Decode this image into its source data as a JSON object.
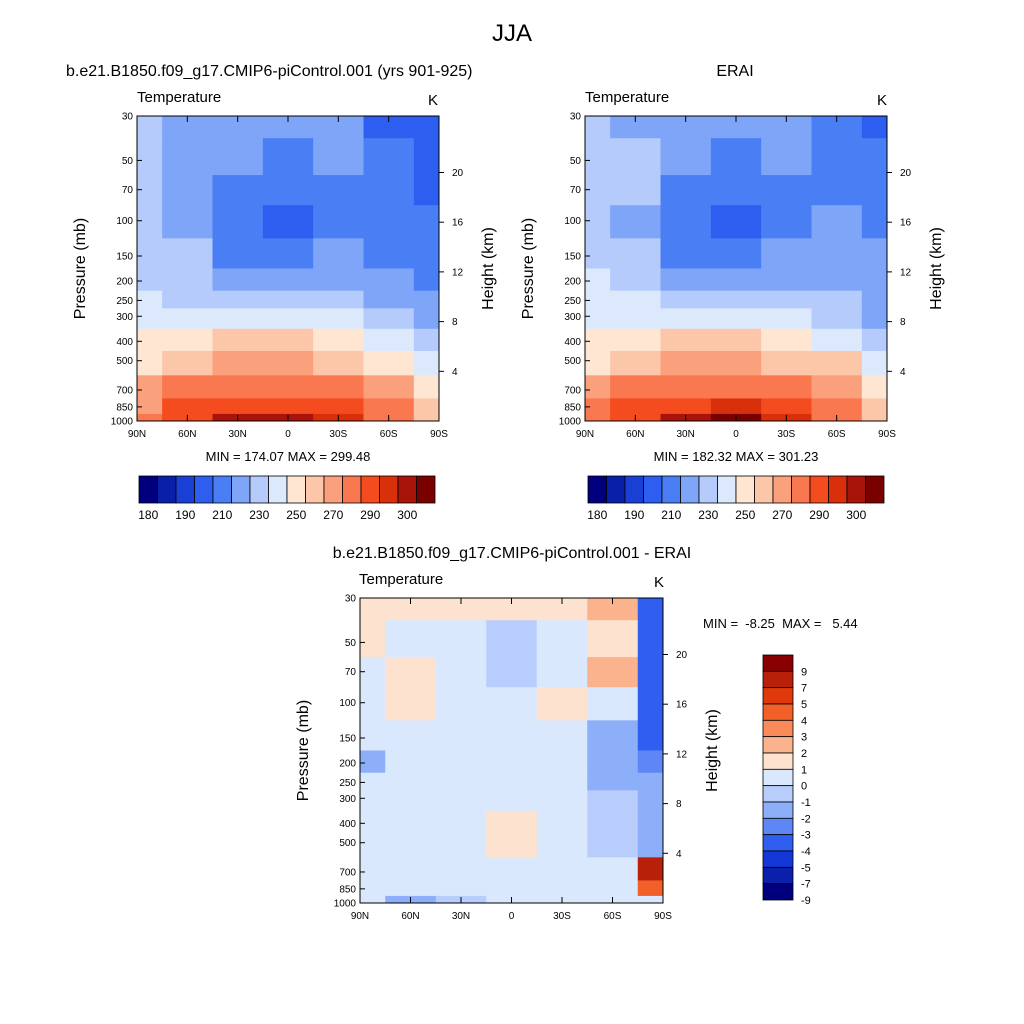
{
  "page_title": "JJA",
  "panels": [
    {
      "title": "b.e21.B1850.f09_g17.CMIP6-piControl.001 (yrs 901-925)",
      "variable": "Temperature",
      "units": "K",
      "ylabel": "Pressure (mb)",
      "ylabel_right": "Height (km)",
      "x_ticks": [
        "90N",
        "60N",
        "30N",
        "0",
        "30S",
        "60S",
        "90S"
      ],
      "y_ticks": [
        "30",
        "50",
        "70",
        "100",
        "150",
        "200",
        "250",
        "300",
        "400",
        "500",
        "700",
        "850",
        "1000"
      ],
      "height_ticks": [
        "20",
        "16",
        "12",
        "8",
        "4"
      ],
      "minmax": "MIN = 174.07  MAX = 299.48",
      "colorbar_labels": [
        "180",
        "190",
        "210",
        "230",
        "250",
        "270",
        "290",
        "300"
      ]
    },
    {
      "title": "ERAI",
      "variable": "Temperature",
      "units": "K",
      "ylabel": "Pressure (mb)",
      "ylabel_right": "Height (km)",
      "x_ticks": [
        "90N",
        "60N",
        "30N",
        "0",
        "30S",
        "60S",
        "90S"
      ],
      "y_ticks": [
        "30",
        "50",
        "70",
        "100",
        "150",
        "200",
        "250",
        "300",
        "400",
        "500",
        "700",
        "850",
        "1000"
      ],
      "height_ticks": [
        "20",
        "16",
        "12",
        "8",
        "4"
      ],
      "minmax": "MIN = 182.32  MAX = 301.23",
      "colorbar_labels": [
        "180",
        "190",
        "210",
        "230",
        "250",
        "270",
        "290",
        "300"
      ]
    },
    {
      "title": "b.e21.B1850.f09_g17.CMIP6-piControl.001 - ERAI",
      "variable": "Temperature",
      "units": "K",
      "ylabel": "Pressure (mb)",
      "ylabel_right": "Height (km)",
      "x_ticks": [
        "90N",
        "60N",
        "30N",
        "0",
        "30S",
        "60S",
        "90S"
      ],
      "y_ticks": [
        "30",
        "50",
        "70",
        "100",
        "150",
        "200",
        "250",
        "300",
        "400",
        "500",
        "700",
        "850",
        "1000"
      ],
      "height_ticks": [
        "20",
        "16",
        "12",
        "8",
        "4"
      ],
      "minmax": "MIN =  -8.25  MAX =   5.44",
      "colorbar_labels": [
        "9",
        "7",
        "5",
        "4",
        "3",
        "2",
        "1",
        "0",
        "-1",
        "-2",
        "-3",
        "-4",
        "-5",
        "-7",
        "-9"
      ]
    }
  ],
  "colors": {
    "abs_scale": [
      "#00007f",
      "#0a1fa8",
      "#1a3fd4",
      "#2d5ef0",
      "#4a7ef5",
      "#7fa5f8",
      "#b4cbfb",
      "#dce9fd",
      "#fee6d3",
      "#fcc6a8",
      "#fba07c",
      "#f9784f",
      "#f44b1f",
      "#d8300a",
      "#a8140a",
      "#7a0000"
    ],
    "diff_scale": [
      "#8a0000",
      "#b8200a",
      "#e03a0c",
      "#f2602a",
      "#f98a5a",
      "#fbb38e",
      "#fde3cf",
      "#d9e8fd",
      "#b8cdfb",
      "#8daef8",
      "#5e86f4",
      "#2f5ef0",
      "#1437d8",
      "#0a1faa",
      "#00007f"
    ]
  },
  "chart_data": [
    {
      "type": "heatmap",
      "title": "b.e21.B1850.f09_g17.CMIP6-piControl.001 (yrs 901-925)",
      "x": [
        "90N",
        "60N",
        "30N",
        "0",
        "30S",
        "60S",
        "90S"
      ],
      "y_pressure_mb": [
        30,
        50,
        70,
        100,
        150,
        200,
        250,
        300,
        400,
        500,
        700,
        850,
        1000
      ],
      "values_K": [
        [
          225,
          218,
          212,
          211,
          212,
          198,
          190
        ],
        [
          226,
          219,
          211,
          209,
          211,
          200,
          196
        ],
        [
          227,
          219,
          208,
          205,
          209,
          203,
          198
        ],
        [
          228,
          218,
          203,
          198,
          206,
          206,
          202
        ],
        [
          228,
          221,
          207,
          205,
          210,
          209,
          205
        ],
        [
          229,
          224,
          215,
          214,
          217,
          212,
          207
        ],
        [
          230,
          229,
          224,
          223,
          224,
          217,
          211
        ],
        [
          233,
          236,
          235,
          234,
          232,
          224,
          215
        ],
        [
          240,
          246,
          250,
          250,
          246,
          236,
          224
        ],
        [
          248,
          256,
          262,
          263,
          259,
          247,
          232
        ],
        [
          262,
          272,
          278,
          279,
          275,
          262,
          244
        ],
        [
          269,
          280,
          287,
          289,
          285,
          270,
          250
        ],
        [
          274,
          285,
          296,
          299,
          291,
          276,
          252
        ]
      ],
      "min": 174.07,
      "max": 299.48
    },
    {
      "type": "heatmap",
      "title": "ERAI",
      "x": [
        "90N",
        "60N",
        "30N",
        "0",
        "30S",
        "60S",
        "90S"
      ],
      "y_pressure_mb": [
        30,
        50,
        70,
        100,
        150,
        200,
        250,
        300,
        400,
        500,
        700,
        850,
        1000
      ],
      "values_K": [
        [
          225,
          219,
          214,
          211,
          213,
          203,
          197
        ],
        [
          226,
          220,
          212,
          209,
          212,
          206,
          200
        ],
        [
          227,
          220,
          208,
          205,
          209,
          208,
          203
        ],
        [
          228,
          218,
          202,
          197,
          206,
          210,
          207
        ],
        [
          229,
          222,
          207,
          205,
          211,
          215,
          210
        ],
        [
          230,
          225,
          215,
          214,
          217,
          216,
          211
        ],
        [
          231,
          230,
          224,
          223,
          224,
          220,
          214
        ],
        [
          234,
          237,
          235,
          234,
          232,
          227,
          218
        ],
        [
          240,
          247,
          250,
          250,
          246,
          239,
          227
        ],
        [
          248,
          257,
          262,
          263,
          259,
          250,
          235
        ],
        [
          263,
          273,
          279,
          279,
          276,
          265,
          248
        ],
        [
          270,
          281,
          288,
          290,
          286,
          273,
          254
        ],
        [
          275,
          286,
          297,
          301,
          292,
          279,
          258
        ]
      ],
      "min": 182.32,
      "max": 301.23
    },
    {
      "type": "heatmap",
      "title": "b.e21.B1850.f09_g17.CMIP6-piControl.001 - ERAI",
      "x": [
        "90N",
        "60N",
        "30N",
        "0",
        "30S",
        "60S",
        "90S"
      ],
      "y_pressure_mb": [
        30,
        50,
        70,
        100,
        150,
        200,
        250,
        300,
        400,
        500,
        700,
        850,
        1000
      ],
      "values_K": [
        [
          0.5,
          0.5,
          0.5,
          0.5,
          0.5,
          1.5,
          -5
        ],
        [
          0.5,
          -0.5,
          -0.5,
          -1.5,
          -1,
          0.5,
          -5
        ],
        [
          -0.5,
          0.5,
          -0.5,
          -2,
          -1,
          1.5,
          -5
        ],
        [
          -0.5,
          0.5,
          -0.5,
          -0.5,
          0.5,
          -1,
          -5
        ],
        [
          -0.5,
          -0.5,
          -0.5,
          -0.5,
          -0.5,
          -2.5,
          -5
        ],
        [
          -3,
          -0.5,
          -0.5,
          -0.5,
          -0.5,
          -2.5,
          -4
        ],
        [
          -1,
          -0.5,
          -0.5,
          -0.5,
          -0.5,
          -2.5,
          -3
        ],
        [
          -0.5,
          -0.5,
          -0.5,
          -0.5,
          -0.5,
          -1.5,
          -3
        ],
        [
          -0.5,
          -0.5,
          -0.5,
          0.5,
          -0.5,
          -1.5,
          -2.5
        ],
        [
          -1,
          -0.5,
          -0.5,
          0.5,
          -0.5,
          -1.5,
          -2.5
        ],
        [
          -1,
          -0.5,
          -1,
          -0.5,
          -1,
          -1,
          5
        ],
        [
          -1,
          -1,
          -1,
          -0.5,
          -1,
          -1,
          3
        ],
        [
          -1,
          -3,
          -2,
          -0.5,
          -0.5,
          -1,
          -1
        ]
      ],
      "min": -8.25,
      "max": 5.44
    }
  ]
}
